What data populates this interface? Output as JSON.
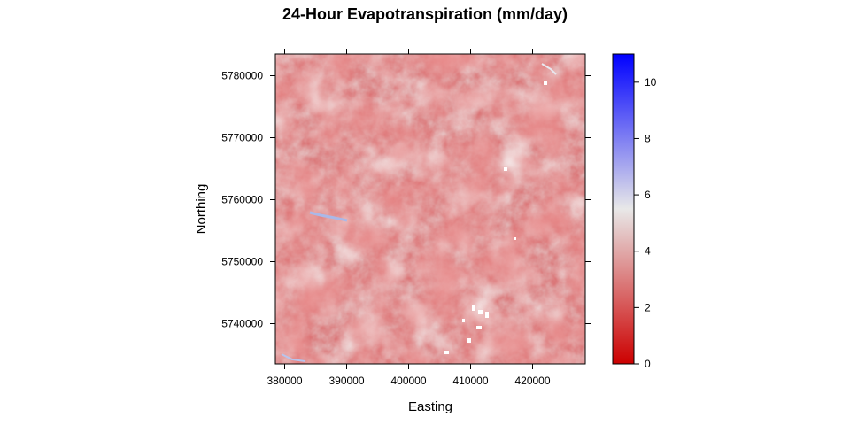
{
  "chart_data": {
    "type": "heatmap",
    "title": "24-Hour Evapotranspiration (mm/day)",
    "xlabel": "Easting",
    "ylabel": "Northing",
    "xlim": [
      378500,
      428500
    ],
    "ylim": [
      5733500,
      5783500
    ],
    "x_ticks": [
      380000,
      390000,
      400000,
      410000,
      420000
    ],
    "x_tick_labels": [
      "380000",
      "390000",
      "400000",
      "410000",
      "420000"
    ],
    "y_ticks": [
      5740000,
      5750000,
      5760000,
      5770000,
      5780000
    ],
    "y_tick_labels": [
      "5740000",
      "5750000",
      "5760000",
      "5770000",
      "5780000"
    ],
    "colorbar": {
      "range": [
        0,
        11
      ],
      "ticks": [
        0,
        2,
        4,
        6,
        8,
        10
      ],
      "tick_labels": [
        "0",
        "2",
        "4",
        "6",
        "8",
        "10"
      ],
      "colors": [
        "#cc0000",
        "#e8e8e8",
        "#0000ff"
      ],
      "midpoint": 5.5
    },
    "grid": false,
    "dominant_range": [
      1,
      6
    ]
  }
}
